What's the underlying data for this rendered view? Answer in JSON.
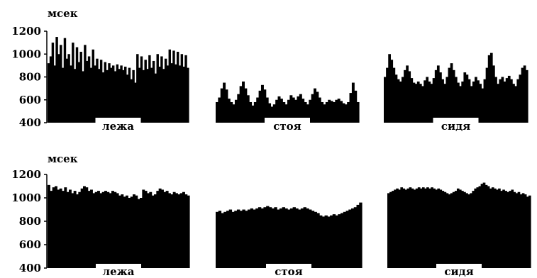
{
  "chart_data": [
    {
      "type": "bar",
      "ylabel": "мсек",
      "ylim": [
        400,
        1200
      ],
      "yticks": [
        400,
        600,
        800,
        1000,
        1200
      ],
      "segments": [
        {
          "label": "лежа",
          "values": [
            920,
            980,
            1100,
            900,
            1150,
            1000,
            1080,
            880,
            1140,
            960,
            1000,
            900,
            1100,
            870,
            1060,
            930,
            1020,
            850,
            1080,
            940,
            980,
            880,
            1040,
            900,
            960,
            870,
            950,
            840,
            930,
            860,
            920,
            880,
            900,
            850,
            910,
            870,
            900,
            860,
            890,
            820,
            880,
            780,
            860,
            750,
            1000,
            880,
            980,
            860,
            950,
            870,
            990,
            880,
            940,
            830,
            1000,
            890,
            980,
            870,
            960,
            900,
            1040,
            920,
            1030,
            910,
            1020,
            900,
            1000,
            890,
            990,
            880
          ]
        },
        {
          "label": "стоя",
          "values": [
            580,
            620,
            700,
            750,
            690,
            610,
            580,
            560,
            600,
            650,
            720,
            760,
            700,
            640,
            580,
            550,
            580,
            620,
            680,
            730,
            690,
            620,
            570,
            540,
            560,
            600,
            630,
            610,
            580,
            560,
            600,
            640,
            620,
            600,
            630,
            650,
            610,
            580,
            560,
            600,
            650,
            700,
            670,
            620,
            580,
            560,
            580,
            600,
            590,
            580,
            600,
            610,
            590,
            570,
            560,
            580,
            660,
            750,
            680,
            580
          ]
        },
        {
          "label": "сидя",
          "values": [
            800,
            880,
            1000,
            950,
            880,
            820,
            780,
            760,
            800,
            860,
            900,
            850,
            790,
            750,
            740,
            760,
            740,
            720,
            770,
            800,
            760,
            740,
            790,
            860,
            900,
            840,
            780,
            740,
            800,
            880,
            920,
            860,
            800,
            750,
            720,
            760,
            840,
            820,
            780,
            720,
            760,
            800,
            770,
            740,
            700,
            780,
            880,
            990,
            1010,
            900,
            800,
            740,
            780,
            800,
            760,
            790,
            810,
            780,
            740,
            720,
            780,
            820,
            880,
            900,
            860
          ]
        }
      ]
    },
    {
      "type": "bar",
      "ylabel": "мсек",
      "ylim": [
        400,
        1200
      ],
      "yticks": [
        400,
        600,
        800,
        1000,
        1200
      ],
      "segments": [
        {
          "label": "лежа",
          "values": [
            1110,
            1060,
            1090,
            1100,
            1070,
            1080,
            1060,
            1090,
            1050,
            1070,
            1040,
            1060,
            1030,
            1050,
            1080,
            1100,
            1090,
            1060,
            1070,
            1040,
            1050,
            1060,
            1040,
            1050,
            1060,
            1050,
            1040,
            1060,
            1050,
            1040,
            1020,
            1030,
            1010,
            1020,
            1000,
            1010,
            1030,
            1020,
            990,
            1000,
            1070,
            1060,
            1040,
            1050,
            1020,
            1030,
            1060,
            1080,
            1070,
            1050,
            1060,
            1040,
            1030,
            1050,
            1040,
            1030,
            1040,
            1050,
            1030,
            1020
          ]
        },
        {
          "label": "стоя",
          "values": [
            880,
            890,
            870,
            880,
            890,
            900,
            880,
            890,
            900,
            890,
            900,
            890,
            900,
            910,
            900,
            910,
            920,
            910,
            920,
            930,
            920,
            910,
            920,
            900,
            910,
            920,
            910,
            900,
            910,
            920,
            910,
            900,
            910,
            920,
            910,
            900,
            890,
            880,
            870,
            850,
            840,
            850,
            840,
            850,
            860,
            850,
            860,
            870,
            880,
            890,
            900,
            910,
            920,
            940,
            960
          ]
        },
        {
          "label": "сидя",
          "values": [
            1040,
            1050,
            1060,
            1070,
            1080,
            1070,
            1090,
            1080,
            1070,
            1080,
            1090,
            1080,
            1070,
            1080,
            1090,
            1080,
            1090,
            1080,
            1090,
            1080,
            1090,
            1080,
            1070,
            1080,
            1070,
            1060,
            1050,
            1040,
            1030,
            1040,
            1050,
            1060,
            1080,
            1070,
            1060,
            1050,
            1040,
            1030,
            1040,
            1060,
            1080,
            1090,
            1100,
            1120,
            1130,
            1110,
            1100,
            1080,
            1090,
            1080,
            1070,
            1080,
            1060,
            1070,
            1060,
            1050,
            1060,
            1070,
            1050,
            1040,
            1050,
            1030,
            1040,
            1030,
            1010,
            1020
          ]
        }
      ]
    }
  ]
}
